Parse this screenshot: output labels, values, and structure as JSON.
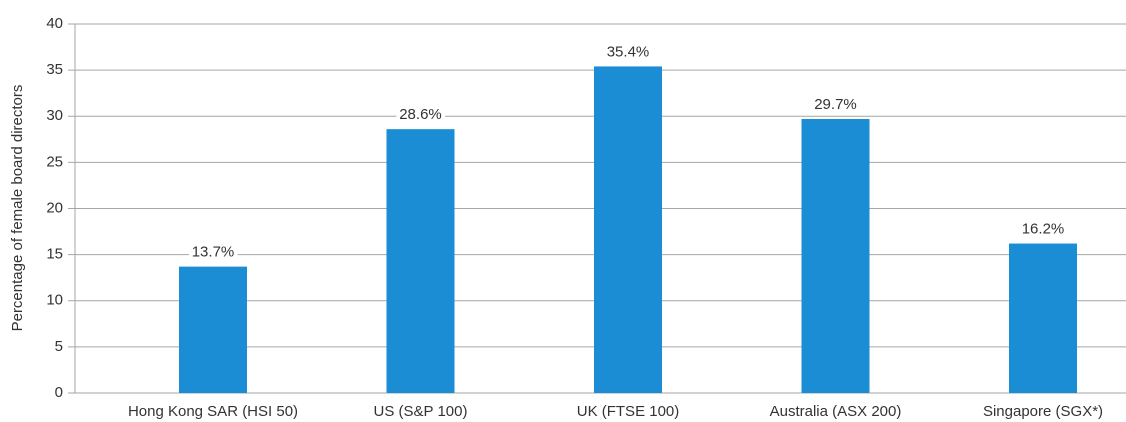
{
  "chart_data": {
    "type": "bar",
    "y_label": "Percentage of female board directors",
    "categories": [
      "Hong Kong SAR (HSI 50)",
      "US (S&P 100)",
      "UK (FTSE 100)",
      "Australia (ASX 200)",
      "Singapore (SGX*)"
    ],
    "values": [
      13.7,
      28.6,
      35.4,
      29.7,
      16.2
    ],
    "value_labels": [
      "13.7%",
      "28.6%",
      "35.4%",
      "29.7%",
      "16.2%"
    ],
    "color": "#1a8dd4",
    "ylim": [
      0,
      40
    ],
    "yticks": [
      0,
      5,
      10,
      15,
      20,
      25,
      30,
      35,
      40
    ],
    "grid": true
  }
}
